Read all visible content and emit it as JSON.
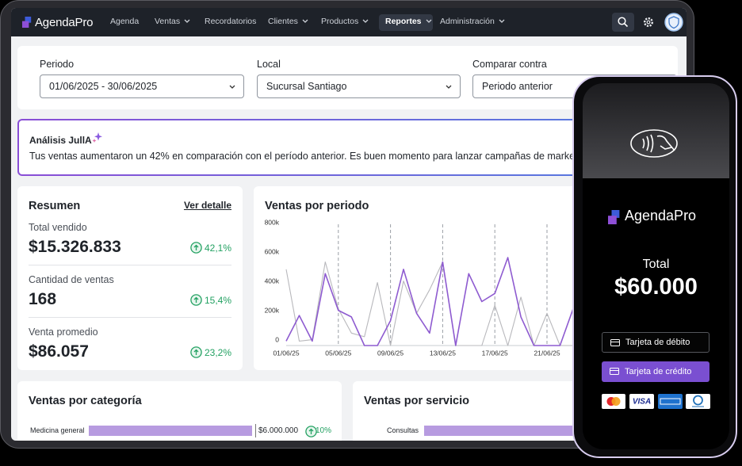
{
  "nav": {
    "brand": "AgendaPro",
    "items": [
      "Agenda",
      "Ventas",
      "Recordatorios",
      "Clientes",
      "Productos",
      "Reportes",
      "Administración"
    ]
  },
  "filters": [
    {
      "label": "Periodo",
      "value": "01/06/2025 - 30/06/2025"
    },
    {
      "label": "Local",
      "value": "Sucursal Santiago"
    },
    {
      "label": "Comparar contra",
      "value": "Periodo anterior"
    }
  ],
  "insight": {
    "title": "Análisis JullA",
    "text": "Tus ventas aumentaron un 42% en comparación con el período anterior. Es buen momento para lanzar campañas de marketing"
  },
  "summary": {
    "title": "Resumen",
    "link": "Ver detalle",
    "metrics": [
      {
        "label": "Total vendido",
        "value": "$15.326.833",
        "change": "42,1%"
      },
      {
        "label": "Cantidad de ventas",
        "value": "168",
        "change": "15,4%"
      },
      {
        "label": "Venta promedio",
        "value": "$86.057",
        "change": "23,2%"
      }
    ]
  },
  "chart_data": {
    "type": "line",
    "title": "Ventas por periodo",
    "categories": [
      "01/06/25",
      null,
      null,
      null,
      "05/06/25",
      null,
      null,
      null,
      "09/06/25",
      null,
      null,
      null,
      "13/06/25",
      null,
      null,
      null,
      "17/06/25",
      null,
      null,
      null,
      "21/06/25",
      null,
      null
    ],
    "series": [
      {
        "color": "#8e5bd0",
        "values": [
          30000,
          205000,
          30000,
          490000,
          240000,
          195000,
          0,
          0,
          170000,
          520000,
          220000,
          85000,
          570000,
          0,
          490000,
          300000,
          355000,
          600000,
          195000,
          0,
          0,
          0,
          250000
        ]
      },
      {
        "color": "#b8b8bc",
        "values": [
          520000,
          30000,
          40000,
          570000,
          250000,
          85000,
          60000,
          430000,
          0,
          440000,
          220000,
          380000,
          570000,
          0,
          0,
          0,
          275000,
          0,
          330000,
          0,
          220000,
          0,
          0
        ]
      }
    ],
    "ylim": [
      0,
      800000
    ],
    "yticks": [
      0,
      {
        "value": 200000,
        "label": "200k"
      },
      {
        "value": 400000,
        "label": "400k"
      },
      {
        "value": 600000,
        "label": "600k"
      },
      {
        "value": 800000,
        "label": "800k"
      }
    ],
    "grid": true
  },
  "category_cards": [
    {
      "title": "Ventas por categoría",
      "rows": [
        {
          "label": "Medicina general",
          "value": "$6.000.000",
          "change": "10%"
        }
      ]
    },
    {
      "title": "Ventas por servicio",
      "rows": [
        {
          "label": "Consultas"
        }
      ]
    }
  ],
  "phone": {
    "brand": "AgendaPro",
    "total_label": "Total",
    "total": "$60.000",
    "buttons": [
      "Tarjeta de débito",
      "Tarjeta de crédito"
    ],
    "card_brand": "VISA"
  }
}
